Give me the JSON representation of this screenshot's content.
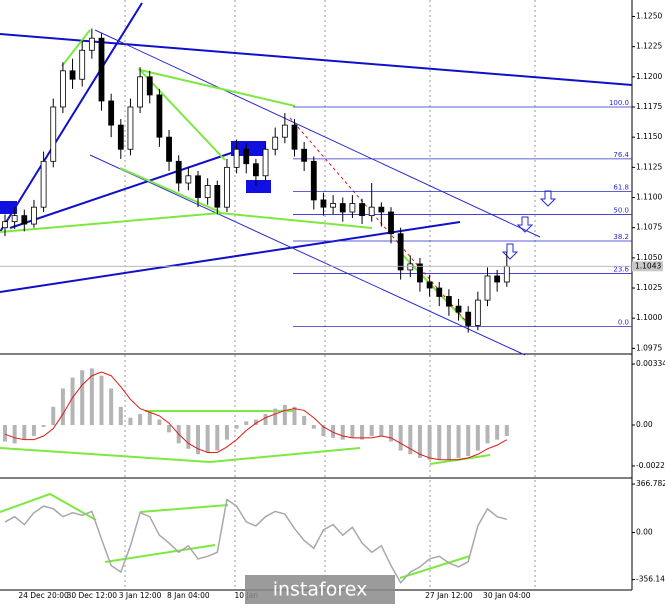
{
  "chart_data": [
    {
      "type": "candlestick",
      "color": "#000000",
      "categories": [
        null,
        null,
        null,
        null,
        "24 Dec 20:00",
        null,
        null,
        null,
        null,
        "30 Dec 12:00",
        null,
        null,
        null,
        null,
        "3 Jan 12:00",
        null,
        null,
        null,
        null,
        "8 Jan 04:00",
        null,
        null,
        null,
        null,
        null,
        "10 Jan",
        null,
        null,
        null,
        null,
        null,
        null,
        null,
        null,
        null,
        null,
        null,
        null,
        null,
        null,
        null,
        null,
        null,
        null,
        null,
        null,
        "27 Jan 12:00",
        null,
        null,
        null,
        null,
        null,
        "30 Jan 04:00"
      ],
      "open": [
        1.1075,
        1.108,
        1.1085,
        1.1078,
        1.1092,
        1.113,
        1.1175,
        1.1205,
        1.1198,
        1.1222,
        1.1232,
        1.118,
        1.116,
        1.114,
        1.1175,
        1.12,
        1.1185,
        1.115,
        1.113,
        1.1112,
        1.1118,
        1.11,
        1.111,
        1.1092,
        1.1125,
        1.114,
        1.1128,
        1.1118,
        1.114,
        1.115,
        1.116,
        1.114,
        1.113,
        1.1098,
        1.1092,
        1.1095,
        1.1088,
        1.1095,
        1.1085,
        1.1092,
        1.1088,
        1.107,
        1.104,
        1.1045,
        1.103,
        1.1025,
        1.1018,
        1.101,
        1.1005,
        1.0994,
        1.1015,
        1.1035,
        1.103
      ],
      "high": [
        1.1086,
        1.1092,
        1.109,
        1.1098,
        1.1138,
        1.1182,
        1.1212,
        1.1215,
        1.123,
        1.124,
        1.1236,
        1.1186,
        1.1165,
        1.1182,
        1.1208,
        1.1205,
        1.119,
        1.1156,
        1.1135,
        1.1125,
        1.1122,
        1.1116,
        1.1114,
        1.1132,
        1.1148,
        1.1145,
        1.1132,
        1.1146,
        1.1158,
        1.117,
        1.1165,
        1.1146,
        1.1134,
        1.1104,
        1.1102,
        1.11,
        1.1102,
        1.1099,
        1.1112,
        1.1096,
        1.1092,
        1.1075,
        1.1052,
        1.105,
        1.1036,
        1.103,
        1.1024,
        1.1016,
        1.101,
        1.1022,
        1.1042,
        1.104,
        1.1055
      ],
      "low": [
        1.1068,
        1.1074,
        1.1072,
        1.1075,
        1.1088,
        1.1125,
        1.117,
        1.119,
        1.1192,
        1.1215,
        1.1172,
        1.115,
        1.1132,
        1.1135,
        1.117,
        1.1178,
        1.1142,
        1.1122,
        1.1105,
        1.1106,
        1.1092,
        1.1094,
        1.1086,
        1.1088,
        1.112,
        1.112,
        1.111,
        1.1114,
        1.1135,
        1.1145,
        1.1134,
        1.1122,
        1.109,
        1.1085,
        1.1086,
        1.108,
        1.1083,
        1.1078,
        1.108,
        1.1076,
        1.1062,
        1.1032,
        1.1034,
        1.1022,
        1.1018,
        1.101,
        1.1002,
        1.0998,
        1.0988,
        1.099,
        1.101,
        1.1022,
        1.1026
      ],
      "close": [
        1.108,
        1.1085,
        1.1078,
        1.1092,
        1.113,
        1.1175,
        1.1205,
        1.1198,
        1.1222,
        1.1232,
        1.118,
        1.116,
        1.114,
        1.1175,
        1.12,
        1.1185,
        1.115,
        1.113,
        1.1112,
        1.1118,
        1.11,
        1.111,
        1.1092,
        1.1125,
        1.114,
        1.1128,
        1.1118,
        1.114,
        1.115,
        1.116,
        1.114,
        1.113,
        1.1098,
        1.1092,
        1.1095,
        1.1088,
        1.1095,
        1.1085,
        1.1092,
        1.1088,
        1.107,
        1.104,
        1.1045,
        1.103,
        1.1025,
        1.1018,
        1.101,
        1.1005,
        1.0994,
        1.1015,
        1.1035,
        1.103,
        1.1043
      ],
      "ylim": [
        1.0972,
        1.1262
      ],
      "yticks": [
        {
          "value": 1.125,
          "label": "1.1250"
        },
        1.1225,
        {
          "value": 1.12,
          "label": "1.1200"
        },
        1.1175,
        {
          "value": 1.115,
          "label": "1.1150"
        },
        1.1125,
        {
          "value": 1.11,
          "label": "1.1100"
        },
        1.1075,
        {
          "value": 1.105,
          "label": "1.1050"
        },
        1.1025,
        {
          "value": 1.1,
          "label": "1.1000"
        },
        1.0975
      ],
      "last_price": 1.1043,
      "fib_levels": [
        {
          "label": "100.0",
          "price": 1.1175
        },
        {
          "label": "76.4",
          "price": 1.1132
        },
        {
          "label": "61.8",
          "price": 1.1105
        },
        {
          "label": "50.0",
          "price": 1.1086
        },
        {
          "label": "38.2",
          "price": 1.1064
        },
        {
          "label": "23.6",
          "price": 1.1037
        },
        {
          "label": "0.0",
          "price": 1.0993
        }
      ],
      "fib_color": "#2a2ad0"
    },
    {
      "type": "macd",
      "color": "#b4b4b4",
      "signal_color": "#e01818",
      "values": [
        -0.0009,
        -0.001,
        -0.0008,
        -0.0006,
        -0.0001,
        0.001,
        0.002,
        0.0026,
        0.003,
        0.0031,
        0.0027,
        0.002,
        0.001,
        0.0004,
        0.0006,
        0.0007,
        0.0003,
        -0.0004,
        -0.001,
        -0.0013,
        -0.0016,
        -0.0015,
        -0.0014,
        -0.0008,
        -0.0002,
        0.0002,
        0.0003,
        0.0006,
        0.0009,
        0.0011,
        0.001,
        0.0005,
        -0.0002,
        -0.0006,
        -0.0007,
        -0.0008,
        -0.0007,
        -0.0008,
        -0.0006,
        -0.0006,
        -0.0009,
        -0.0014,
        -0.0016,
        -0.0018,
        -0.0019,
        -0.0019,
        -0.0019,
        -0.0018,
        -0.0017,
        -0.0014,
        -0.001,
        -0.0008,
        -0.0006
      ],
      "signal": [
        -0.0005,
        -0.0007,
        -0.0008,
        -0.0008,
        -0.0006,
        -0.0002,
        0.0006,
        0.0015,
        0.0022,
        0.0027,
        0.0029,
        0.0027,
        0.0021,
        0.0014,
        0.0009,
        0.0007,
        0.0005,
        0.0001,
        -0.0005,
        -0.001,
        -0.0013,
        -0.0015,
        -0.0015,
        -0.0012,
        -0.0008,
        -0.0003,
        0.0001,
        0.0004,
        0.0006,
        0.0008,
        0.0009,
        0.0008,
        0.0004,
        -0.0001,
        -0.0004,
        -0.0006,
        -0.0007,
        -0.0007,
        -0.0007,
        -0.0006,
        -0.0007,
        -0.001,
        -0.0013,
        -0.0016,
        -0.0018,
        -0.0019,
        -0.0019,
        -0.0019,
        -0.0018,
        -0.0016,
        -0.0013,
        -0.0011,
        -0.0008
      ],
      "ylim": [
        -0.00279,
        0.00378
      ],
      "yticks": [
        0.00334,
        {
          "value": 0,
          "label": "0.00"
        },
        -0.00224
      ]
    },
    {
      "type": "line",
      "color": "#a8a8a8",
      "values": [
        80,
        120,
        60,
        150,
        200,
        180,
        120,
        150,
        130,
        160,
        -50,
        -250,
        -300,
        -100,
        150,
        120,
        -20,
        -80,
        -150,
        -100,
        -200,
        -180,
        -150,
        250,
        200,
        80,
        50,
        120,
        160,
        140,
        30,
        -60,
        -120,
        20,
        60,
        -20,
        40,
        -80,
        -150,
        -100,
        -250,
        -380,
        -300,
        -260,
        -200,
        -180,
        -230,
        -260,
        -220,
        50,
        180,
        120,
        100
      ],
      "ylim": [
        -420,
        390
      ],
      "yticks": [
        366.782,
        {
          "value": 0,
          "label": "0.00"
        },
        -356.145
      ]
    }
  ],
  "watermark": "instaforex"
}
